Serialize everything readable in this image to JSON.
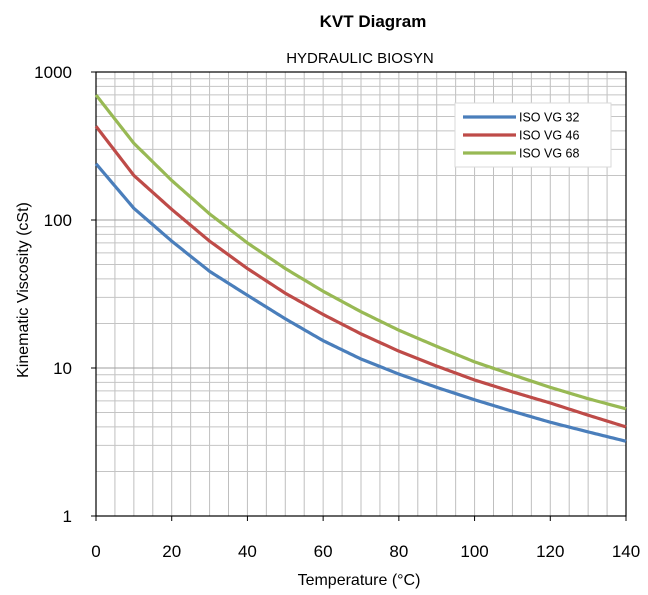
{
  "chart_data": {
    "type": "line",
    "title": "KVT Diagram",
    "subtitle": "HYDRAULIC BIOSYN",
    "xlabel": "Temperature (°C)",
    "ylabel": "Kinematic Viscosity  (cSt)",
    "xlim": [
      0,
      140
    ],
    "ylim": [
      1,
      1000
    ],
    "yscale": "log",
    "x_ticks": [
      "0",
      "20",
      "40",
      "60",
      "80",
      "100",
      "120",
      "140"
    ],
    "y_ticks": [
      "1",
      "10",
      "100",
      "1000"
    ],
    "grid": true,
    "legend_position": "top-right",
    "x": [
      0,
      10,
      20,
      30,
      40,
      50,
      60,
      70,
      80,
      90,
      100,
      110,
      120,
      130,
      140
    ],
    "series": [
      {
        "name": "ISO VG 32",
        "color": "#4a7ebb",
        "values": [
          240,
          120,
          72,
          45,
          31,
          21.5,
          15.3,
          11.5,
          9.1,
          7.4,
          6.1,
          5.1,
          4.3,
          3.7,
          3.2
        ]
      },
      {
        "name": "ISO VG 46",
        "color": "#be4b48",
        "values": [
          430,
          200,
          118,
          72,
          47,
          32,
          23,
          17,
          13,
          10.3,
          8.3,
          6.9,
          5.8,
          4.8,
          4.0
        ]
      },
      {
        "name": "ISO VG 68",
        "color": "#98b954",
        "values": [
          700,
          330,
          185,
          110,
          70,
          47,
          33,
          24,
          18,
          14,
          11,
          9,
          7.4,
          6.2,
          5.3
        ]
      }
    ]
  }
}
